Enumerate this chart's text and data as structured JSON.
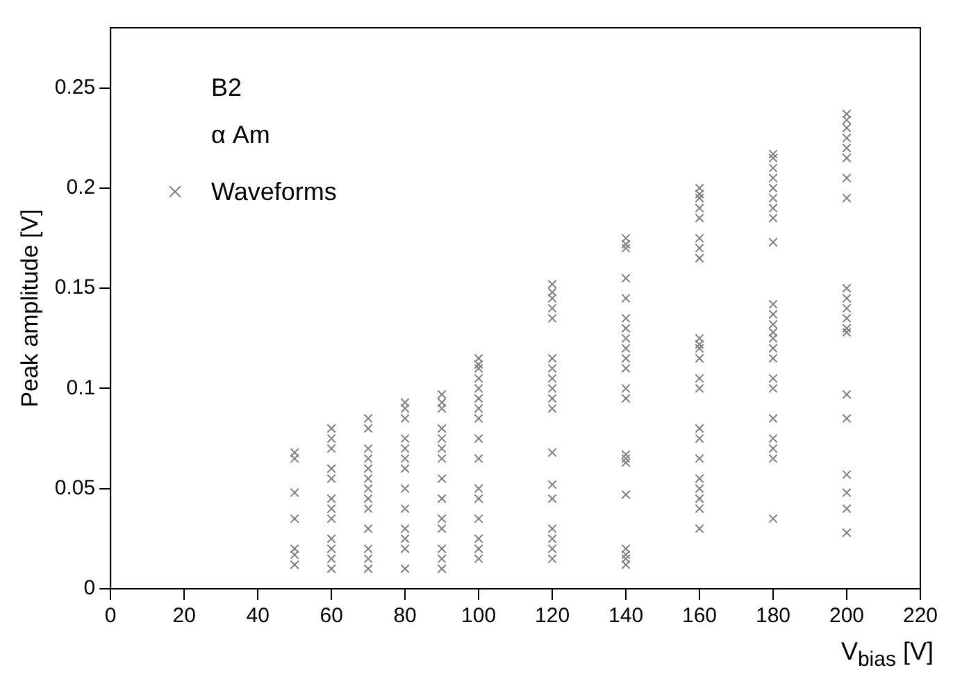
{
  "chart_data": {
    "type": "scatter",
    "xlabel": "V$_{bias}$ [V]",
    "ylabel": "Peak amplitude [V]",
    "annotations": [
      "B2",
      "α Am"
    ],
    "legend": "top left",
    "marker": "cross",
    "grid": false,
    "xlim": [
      0,
      220
    ],
    "xticks": [
      0,
      20,
      40,
      60,
      80,
      100,
      120,
      140,
      160,
      180,
      200,
      220
    ],
    "ylim": [
      0,
      0.28
    ],
    "yticks": [
      0,
      0.05,
      0.1,
      0.15,
      0.2,
      0.25
    ],
    "series": [
      {
        "name": "Waveforms",
        "color": "#808080",
        "x": [
          50,
          50,
          50,
          50,
          50,
          50,
          50,
          60,
          60,
          60,
          60,
          60,
          60,
          60,
          60,
          60,
          60,
          60,
          60,
          70,
          70,
          70,
          70,
          70,
          70,
          70,
          70,
          70,
          70,
          70,
          70,
          70,
          80,
          80,
          80,
          80,
          80,
          80,
          80,
          80,
          80,
          80,
          80,
          80,
          80,
          90,
          90,
          90,
          90,
          90,
          90,
          90,
          90,
          90,
          90,
          90,
          90,
          90,
          90,
          100,
          100,
          100,
          100,
          100,
          100,
          100,
          100,
          100,
          100,
          100,
          100,
          100,
          100,
          100,
          100,
          120,
          120,
          120,
          120,
          120,
          120,
          120,
          120,
          120,
          120,
          120,
          120,
          120,
          120,
          120,
          120,
          120,
          120,
          140,
          140,
          140,
          140,
          140,
          140,
          140,
          140,
          140,
          140,
          140,
          140,
          140,
          140,
          140,
          140,
          140,
          140,
          140,
          140,
          140,
          160,
          160,
          160,
          160,
          160,
          160,
          160,
          160,
          160,
          160,
          160,
          160,
          160,
          160,
          160,
          160,
          160,
          160,
          160,
          160,
          160,
          160,
          180,
          180,
          180,
          180,
          180,
          180,
          180,
          180,
          180,
          180,
          180,
          180,
          180,
          180,
          180,
          180,
          180,
          180,
          180,
          180,
          180,
          180,
          180,
          200,
          200,
          200,
          200,
          200,
          200,
          200,
          200,
          200,
          200,
          200,
          200,
          200,
          200,
          200,
          200,
          200,
          200,
          200,
          200
        ],
        "values": [
          0.068,
          0.065,
          0.048,
          0.035,
          0.02,
          0.017,
          0.012,
          0.08,
          0.075,
          0.07,
          0.06,
          0.055,
          0.045,
          0.04,
          0.035,
          0.025,
          0.02,
          0.015,
          0.01,
          0.085,
          0.08,
          0.07,
          0.065,
          0.06,
          0.055,
          0.05,
          0.045,
          0.04,
          0.03,
          0.02,
          0.015,
          0.01,
          0.093,
          0.09,
          0.085,
          0.075,
          0.07,
          0.065,
          0.06,
          0.05,
          0.04,
          0.03,
          0.025,
          0.02,
          0.01,
          0.097,
          0.093,
          0.09,
          0.08,
          0.075,
          0.07,
          0.065,
          0.055,
          0.045,
          0.035,
          0.03,
          0.02,
          0.015,
          0.01,
          0.115,
          0.112,
          0.11,
          0.105,
          0.1,
          0.095,
          0.09,
          0.085,
          0.075,
          0.065,
          0.05,
          0.045,
          0.035,
          0.025,
          0.02,
          0.015,
          0.152,
          0.148,
          0.145,
          0.14,
          0.135,
          0.115,
          0.11,
          0.105,
          0.1,
          0.095,
          0.09,
          0.068,
          0.052,
          0.045,
          0.03,
          0.025,
          0.02,
          0.015,
          0.175,
          0.172,
          0.17,
          0.155,
          0.145,
          0.135,
          0.13,
          0.125,
          0.12,
          0.115,
          0.11,
          0.1,
          0.095,
          0.067,
          0.065,
          0.063,
          0.047,
          0.02,
          0.017,
          0.015,
          0.012,
          0.2,
          0.197,
          0.195,
          0.19,
          0.185,
          0.175,
          0.17,
          0.165,
          0.125,
          0.122,
          0.12,
          0.115,
          0.105,
          0.1,
          0.08,
          0.075,
          0.065,
          0.055,
          0.05,
          0.045,
          0.04,
          0.03,
          0.217,
          0.215,
          0.21,
          0.205,
          0.2,
          0.195,
          0.19,
          0.185,
          0.173,
          0.142,
          0.137,
          0.132,
          0.128,
          0.125,
          0.12,
          0.115,
          0.105,
          0.1,
          0.085,
          0.075,
          0.07,
          0.065,
          0.035,
          0.237,
          0.234,
          0.23,
          0.225,
          0.22,
          0.215,
          0.205,
          0.195,
          0.15,
          0.145,
          0.14,
          0.135,
          0.13,
          0.128,
          0.097,
          0.085,
          0.057,
          0.048,
          0.04,
          0.028
        ]
      }
    ]
  }
}
